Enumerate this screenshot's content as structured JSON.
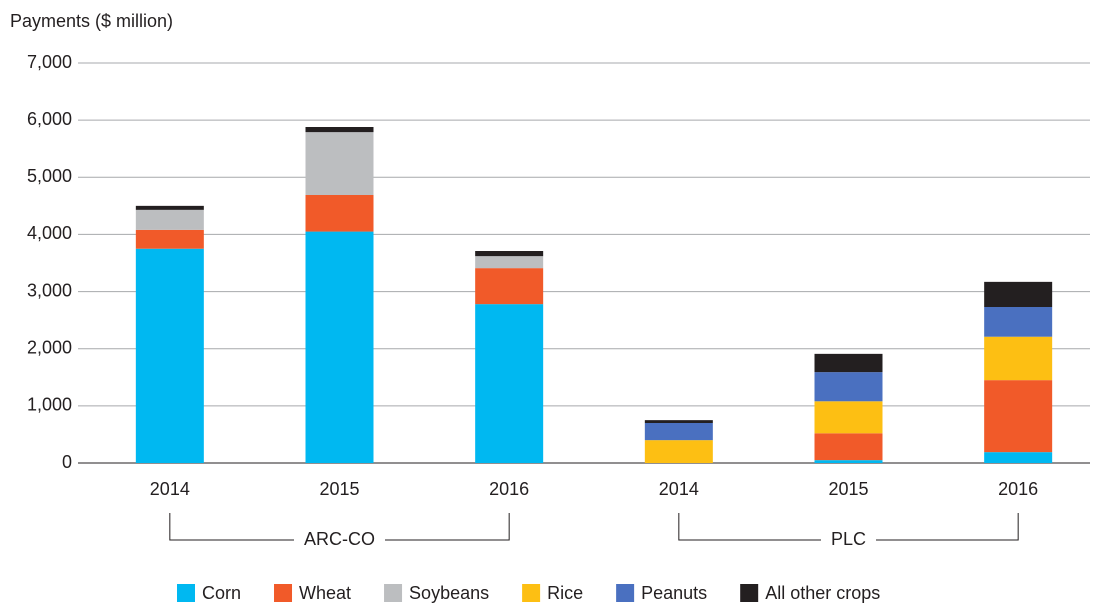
{
  "chart_data": {
    "type": "stacked_bar",
    "y_axis_label": "Payments ($ million)",
    "categories": [
      "2014",
      "2015",
      "2016",
      "2014",
      "2015",
      "2016"
    ],
    "groups": [
      "ARC-CO",
      "PLC"
    ],
    "series": [
      {
        "name": "Corn",
        "color": "#00b8f1",
        "values": [
          3750,
          4050,
          2780,
          0,
          50,
          190
        ]
      },
      {
        "name": "Wheat",
        "color": "#f15a29",
        "values": [
          330,
          640,
          630,
          0,
          470,
          1260
        ]
      },
      {
        "name": "Soybeans",
        "color": "#bcbec0",
        "values": [
          350,
          1100,
          210,
          0,
          0,
          0
        ]
      },
      {
        "name": "Rice",
        "color": "#fdbf13",
        "values": [
          0,
          0,
          0,
          400,
          560,
          760
        ]
      },
      {
        "name": "Peanuts",
        "color": "#4a70c0",
        "values": [
          0,
          0,
          0,
          300,
          510,
          520
        ]
      },
      {
        "name": "All other crops",
        "color": "#231f20",
        "values": [
          70,
          90,
          90,
          50,
          320,
          440
        ]
      }
    ],
    "ylim": [
      0,
      7000
    ],
    "yticks": [
      0,
      {
        "value": 1000,
        "label": "1,000"
      },
      {
        "value": 2000,
        "label": "2,000"
      },
      {
        "value": 3000,
        "label": "3,000"
      },
      {
        "value": 4000,
        "label": "4,000"
      },
      {
        "value": 5000,
        "label": "5,000"
      },
      {
        "value": 6000,
        "label": "6,000"
      },
      {
        "value": 7000,
        "label": "7,000"
      }
    ],
    "grid": true
  }
}
